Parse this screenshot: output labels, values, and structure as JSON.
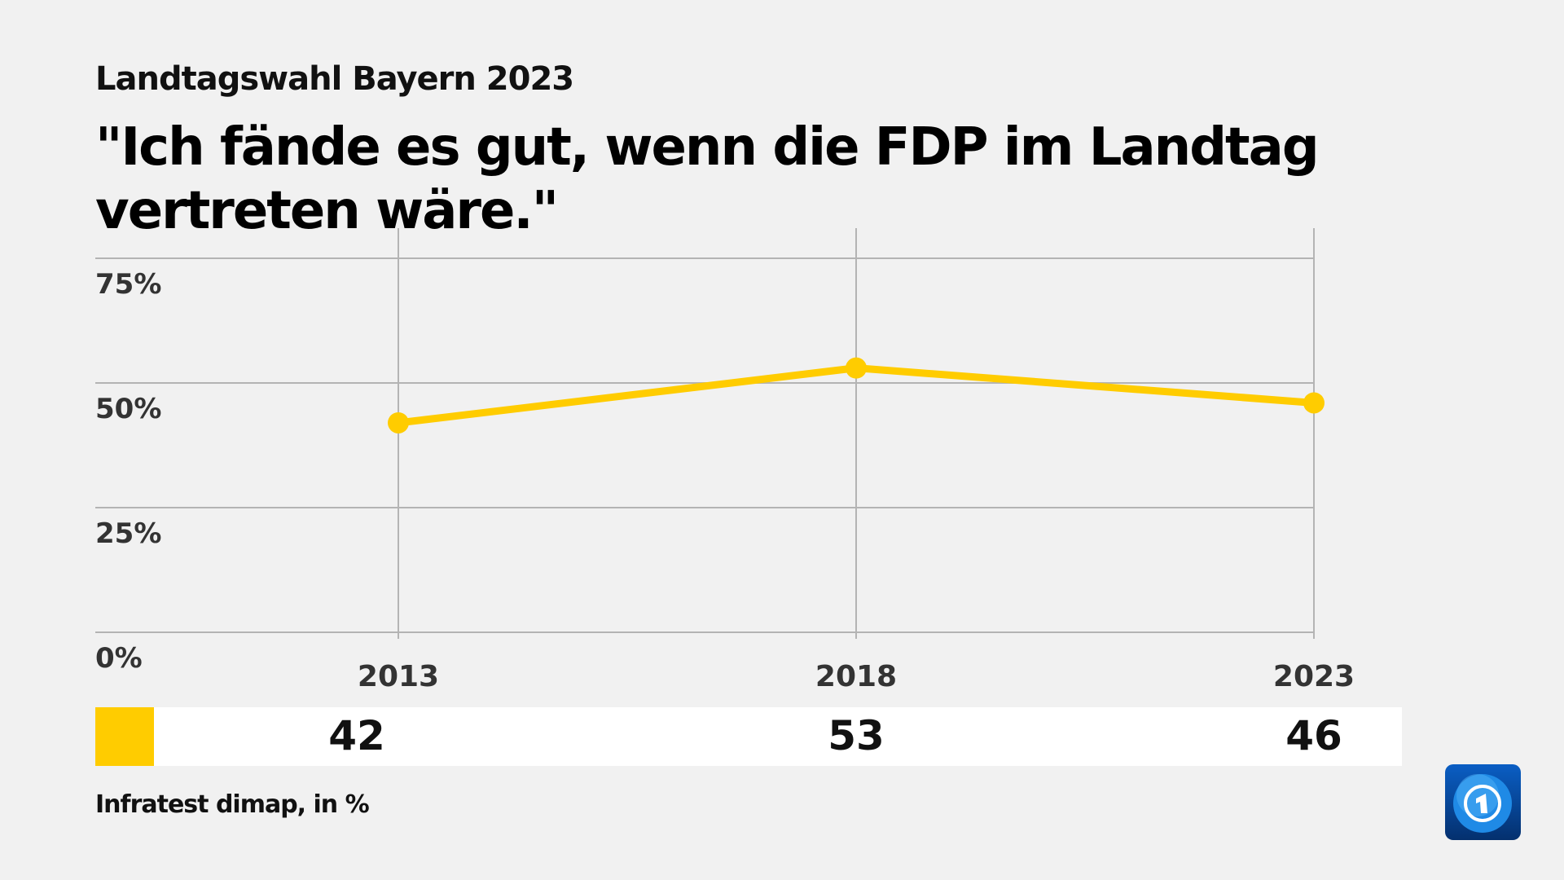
{
  "header": {
    "supertitle": "Landtagswahl Bayern 2023",
    "title": "\"Ich fände es gut, wenn die FDP im Landtag vertreten wäre.\""
  },
  "chart_data": {
    "type": "line",
    "categories": [
      "2013",
      "2018",
      "2023"
    ],
    "series": [
      {
        "values": [
          42,
          53,
          46
        ],
        "color": "#FFCC00"
      }
    ],
    "yticks": [
      "0%",
      "25%",
      "50%",
      "75%"
    ],
    "ytick_values": [
      0,
      25,
      50,
      75
    ],
    "ylim": [
      0,
      75
    ],
    "grid": true
  },
  "value_row": {
    "values": [
      "42",
      "53",
      "46"
    ],
    "color": "#FFCC00"
  },
  "footer": {
    "source": "Infratest dimap, in %"
  },
  "logo": {
    "icon": "tagesschau-globe-1-logo"
  }
}
